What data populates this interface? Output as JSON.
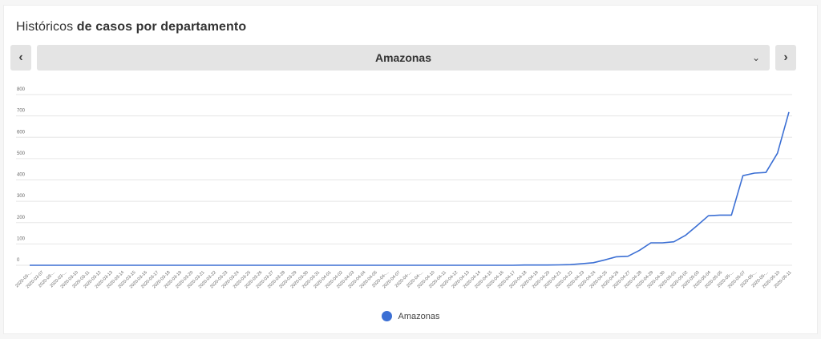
{
  "header": {
    "title_regular": "Históricos",
    "title_bold": "de casos por departamento"
  },
  "selector": {
    "prev_label": "‹",
    "next_label": "›",
    "selected": "Amazonas",
    "chevron": "chevron-down-icon"
  },
  "colors": {
    "series": "#3b6fd4",
    "grid": "#e6e6e6"
  },
  "chart_data": {
    "type": "line",
    "title": "",
    "xlabel": "",
    "ylabel": "",
    "ylim": [
      0,
      800
    ],
    "yticks": [
      0,
      100,
      200,
      300,
      400,
      500,
      600,
      700,
      800
    ],
    "grid": true,
    "legend": "bottom-center",
    "categories": [
      "2020-03-...",
      "2020-03-07",
      "2020-03-...",
      "2020-03-...",
      "2020-03-10",
      "2020-03-11",
      "2020-03-12",
      "2020-03-13",
      "2020-03-14",
      "2020-03-15",
      "2020-03-16",
      "2020-03-17",
      "2020-03-18",
      "2020-03-19",
      "2020-03-20",
      "2020-03-21",
      "2020-03-22",
      "2020-03-23",
      "2020-03-24",
      "2020-03-25",
      "2020-03-26",
      "2020-03-27",
      "2020-03-28",
      "2020-03-29",
      "2020-03-30",
      "2020-03-31",
      "2020-04-01",
      "2020-04-02",
      "2020-04-03",
      "2020-04-04",
      "2020-04-05",
      "2020-04-...",
      "2020-04-07",
      "2020-04-...",
      "2020-04-...",
      "2020-04-10",
      "2020-04-11",
      "2020-04-12",
      "2020-04-13",
      "2020-04-14",
      "2020-04-15",
      "2020-04-16",
      "2020-04-17",
      "2020-04-18",
      "2020-04-19",
      "2020-04-20",
      "2020-04-21",
      "2020-04-22",
      "2020-04-23",
      "2020-04-24",
      "2020-04-25",
      "2020-04-26",
      "2020-04-27",
      "2020-04-28",
      "2020-04-29",
      "2020-04-30",
      "2020-05-01",
      "2020-05-02",
      "2020-05-03",
      "2020-05-04",
      "2020-05-05",
      "2020-05-...",
      "2020-05-07",
      "2020-05-...",
      "2020-05-...",
      "2020-05-10",
      "2020-05-11"
    ],
    "series": [
      {
        "name": "Amazonas",
        "values": [
          0,
          0,
          0,
          0,
          0,
          0,
          0,
          0,
          0,
          0,
          0,
          0,
          0,
          0,
          0,
          0,
          0,
          0,
          0,
          0,
          0,
          0,
          0,
          0,
          0,
          0,
          0,
          0,
          0,
          0,
          0,
          0,
          0,
          0,
          0,
          0,
          0,
          0,
          0,
          0,
          0,
          0,
          0,
          1,
          1,
          1,
          2,
          3,
          7,
          12,
          25,
          40,
          42,
          70,
          105,
          105,
          110,
          140,
          185,
          232,
          235,
          235,
          420,
          432,
          435,
          525,
          718
        ]
      }
    ]
  }
}
